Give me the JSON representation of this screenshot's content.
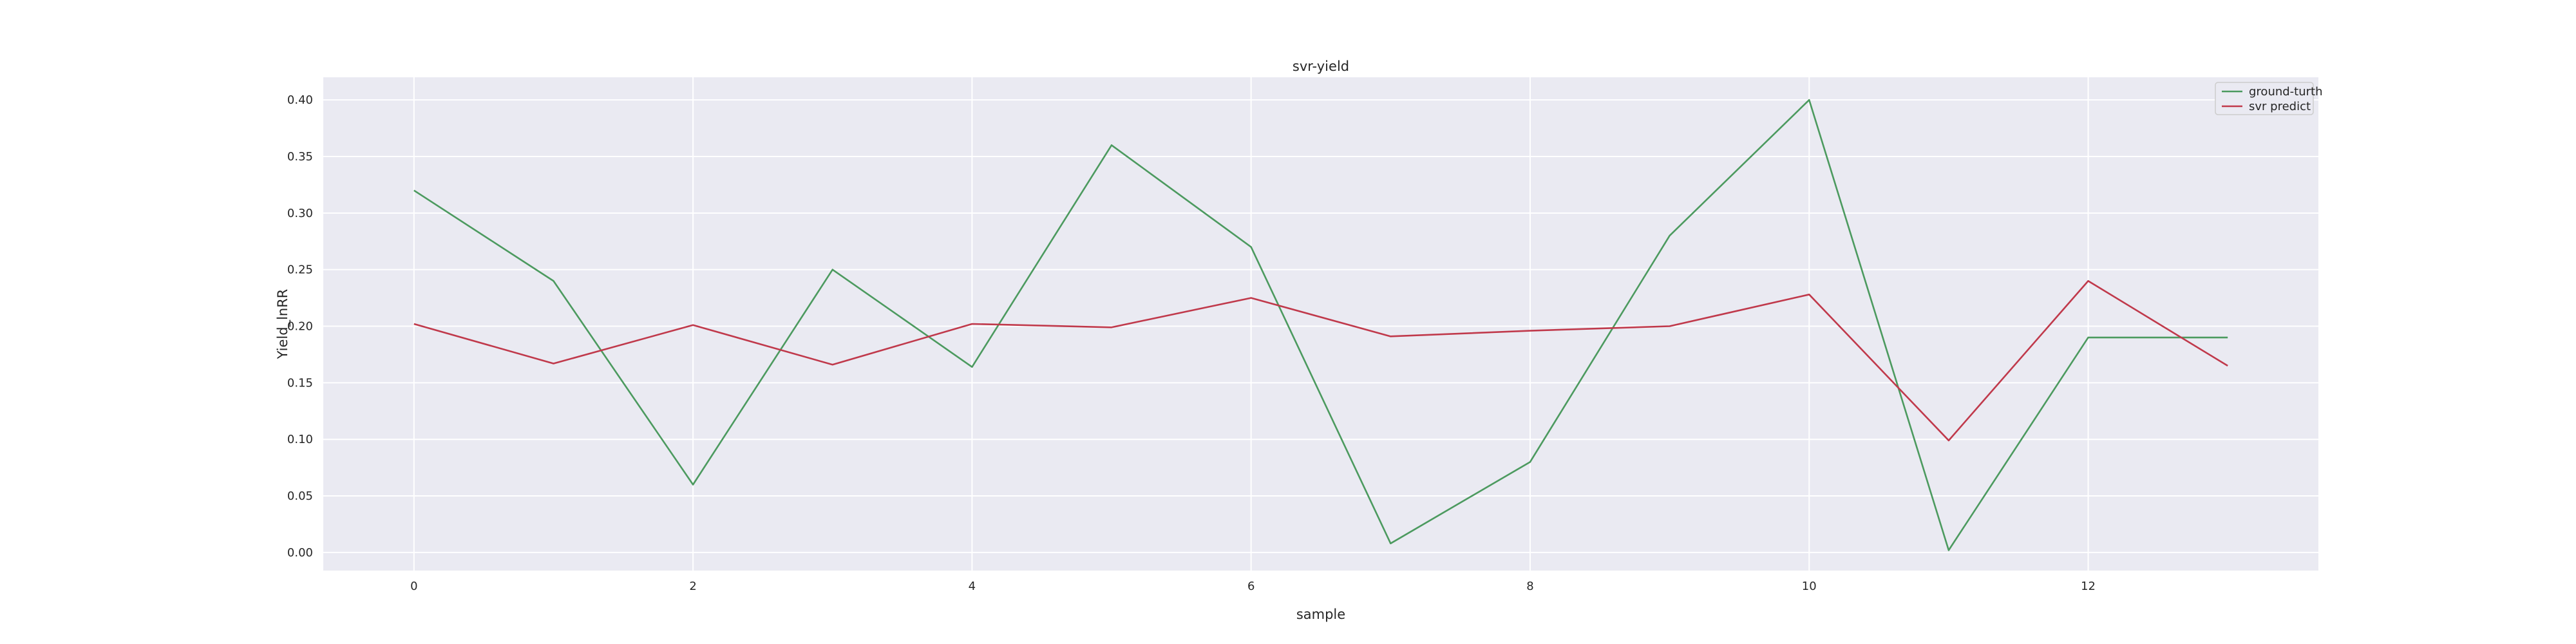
{
  "chart_data": {
    "type": "line",
    "title": "svr-yield",
    "xlabel": "sample",
    "ylabel": "Yield_lnRR",
    "x": [
      0,
      1,
      2,
      3,
      4,
      5,
      6,
      7,
      8,
      9,
      10,
      11,
      12,
      13
    ],
    "series": [
      {
        "name": "ground-turth",
        "color": "#4c9a5f",
        "values": [
          0.32,
          0.24,
          0.06,
          0.25,
          0.164,
          0.36,
          0.27,
          0.008,
          0.08,
          0.28,
          0.4,
          0.002,
          0.19,
          0.19
        ]
      },
      {
        "name": "svr predict",
        "color": "#c0394b",
        "values": [
          0.202,
          0.167,
          0.201,
          0.166,
          0.202,
          0.199,
          0.225,
          0.191,
          0.196,
          0.2,
          0.228,
          0.099,
          0.24,
          0.165
        ]
      }
    ],
    "xlim": [
      -0.65,
      13.65
    ],
    "ylim": [
      -0.016,
      0.42
    ],
    "xticks": [
      0,
      2,
      4,
      6,
      8,
      10,
      12
    ],
    "yticks": [
      0.0,
      0.05,
      0.1,
      0.15,
      0.2,
      0.25,
      0.3,
      0.35,
      0.4
    ],
    "xtick_labels": [
      "0",
      "2",
      "4",
      "6",
      "8",
      "10",
      "12"
    ],
    "ytick_labels": [
      "0.00",
      "0.05",
      "0.10",
      "0.15",
      "0.20",
      "0.25",
      "0.30",
      "0.35",
      "0.40"
    ],
    "grid": true,
    "legend_position": "top-right",
    "background_color": "#eaeaf2",
    "grid_color": "#ffffff"
  }
}
